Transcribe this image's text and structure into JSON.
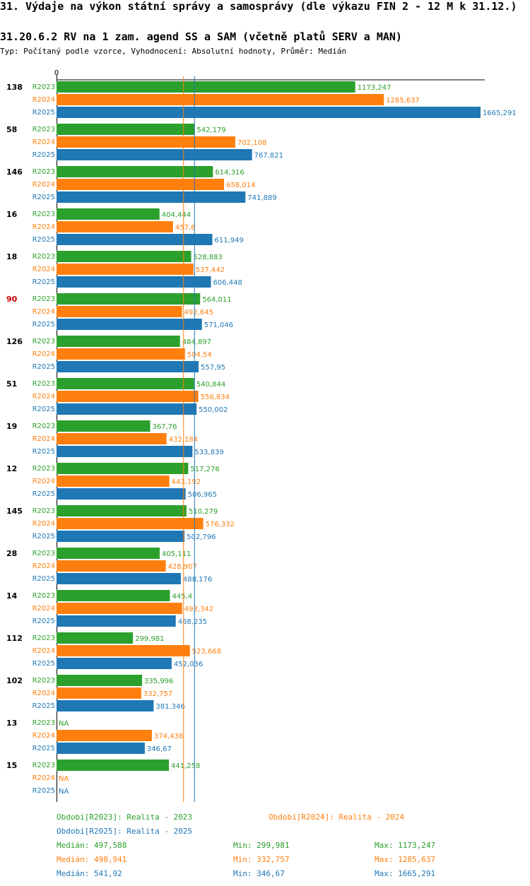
{
  "title": "31. Výdaje na výkon státní správy a samosprávy (dle výkazu FIN 2 - 12 M k 31.12.)",
  "subtitle": "31.20.6.2 RV na 1 zam. agend SS a SAM (včetně platů SERV a MAN)",
  "type_line": "Typ: Počítaný podle vzorce, Vyhodnocení: Absolutní hodnoty, Průměr: Medián",
  "colors": {
    "R2023": "#2ca02c",
    "R2024": "#ff7f0e",
    "R2025": "#1f77b4",
    "highlight": "#cc0000"
  },
  "chart_data": {
    "type": "bar",
    "orientation": "horizontal",
    "axis_zero_label": "0",
    "xlim": [
      0,
      1665.291
    ],
    "series_names": [
      "R2023",
      "R2024",
      "R2025"
    ],
    "highlight_category": "90",
    "reference_lines": [
      {
        "series": "R2024",
        "label": "Medián",
        "value": 498.941
      },
      {
        "series": "R2025",
        "label": "Medián",
        "value": 541.92
      }
    ],
    "groups": [
      {
        "category": "138",
        "values": [
          {
            "series": "R2023",
            "value": 1173.247,
            "label": "1173,247"
          },
          {
            "series": "R2024",
            "value": 1285.637,
            "label": "1285,637"
          },
          {
            "series": "R2025",
            "value": 1665.291,
            "label": "1665,291"
          }
        ]
      },
      {
        "category": "58",
        "values": [
          {
            "series": "R2023",
            "value": 542.179,
            "label": "542,179"
          },
          {
            "series": "R2024",
            "value": 702.108,
            "label": "702,108"
          },
          {
            "series": "R2025",
            "value": 767.821,
            "label": "767,821"
          }
        ]
      },
      {
        "category": "146",
        "values": [
          {
            "series": "R2023",
            "value": 614.316,
            "label": "614,316"
          },
          {
            "series": "R2024",
            "value": 658.014,
            "label": "658,014"
          },
          {
            "series": "R2025",
            "value": 741.889,
            "label": "741,889"
          }
        ]
      },
      {
        "category": "16",
        "values": [
          {
            "series": "R2023",
            "value": 404.444,
            "label": "404,444"
          },
          {
            "series": "R2024",
            "value": 457.6,
            "label": "457,6"
          },
          {
            "series": "R2025",
            "value": 611.949,
            "label": "611,949"
          }
        ]
      },
      {
        "category": "18",
        "values": [
          {
            "series": "R2023",
            "value": 528.883,
            "label": "528,883"
          },
          {
            "series": "R2024",
            "value": 537.442,
            "label": "537,442"
          },
          {
            "series": "R2025",
            "value": 606.448,
            "label": "606,448"
          }
        ]
      },
      {
        "category": "90",
        "values": [
          {
            "series": "R2023",
            "value": 564.011,
            "label": "564,011"
          },
          {
            "series": "R2024",
            "value": 492.645,
            "label": "492,645"
          },
          {
            "series": "R2025",
            "value": 571.046,
            "label": "571,046"
          }
        ]
      },
      {
        "category": "126",
        "values": [
          {
            "series": "R2023",
            "value": 484.897,
            "label": "484,897"
          },
          {
            "series": "R2024",
            "value": 504.54,
            "label": "504,54"
          },
          {
            "series": "R2025",
            "value": 557.95,
            "label": "557,95"
          }
        ]
      },
      {
        "category": "51",
        "values": [
          {
            "series": "R2023",
            "value": 540.844,
            "label": "540,844"
          },
          {
            "series": "R2024",
            "value": 556.834,
            "label": "556,834"
          },
          {
            "series": "R2025",
            "value": 550.002,
            "label": "550,002"
          }
        ]
      },
      {
        "category": "19",
        "values": [
          {
            "series": "R2023",
            "value": 367.76,
            "label": "367,76"
          },
          {
            "series": "R2024",
            "value": 432.184,
            "label": "432,184"
          },
          {
            "series": "R2025",
            "value": 533.839,
            "label": "533,839"
          }
        ]
      },
      {
        "category": "12",
        "values": [
          {
            "series": "R2023",
            "value": 517.276,
            "label": "517,276"
          },
          {
            "series": "R2024",
            "value": 443.192,
            "label": "443,192"
          },
          {
            "series": "R2025",
            "value": 506.965,
            "label": "506,965"
          }
        ]
      },
      {
        "category": "145",
        "values": [
          {
            "series": "R2023",
            "value": 510.279,
            "label": "510,279"
          },
          {
            "series": "R2024",
            "value": 576.332,
            "label": "576,332"
          },
          {
            "series": "R2025",
            "value": 502.796,
            "label": "502,796"
          }
        ]
      },
      {
        "category": "28",
        "values": [
          {
            "series": "R2023",
            "value": 405.111,
            "label": "405,111"
          },
          {
            "series": "R2024",
            "value": 428.907,
            "label": "428,907"
          },
          {
            "series": "R2025",
            "value": 488.176,
            "label": "488,176"
          }
        ]
      },
      {
        "category": "14",
        "values": [
          {
            "series": "R2023",
            "value": 445.4,
            "label": "445,4"
          },
          {
            "series": "R2024",
            "value": 493.342,
            "label": "493,342"
          },
          {
            "series": "R2025",
            "value": 468.235,
            "label": "468,235"
          }
        ]
      },
      {
        "category": "112",
        "values": [
          {
            "series": "R2023",
            "value": 299.981,
            "label": "299,981"
          },
          {
            "series": "R2024",
            "value": 523.668,
            "label": "523,668"
          },
          {
            "series": "R2025",
            "value": 452.036,
            "label": "452,036"
          }
        ]
      },
      {
        "category": "102",
        "values": [
          {
            "series": "R2023",
            "value": 335.996,
            "label": "335,996"
          },
          {
            "series": "R2024",
            "value": 332.757,
            "label": "332,757"
          },
          {
            "series": "R2025",
            "value": 381.346,
            "label": "381,346"
          }
        ]
      },
      {
        "category": "13",
        "values": [
          {
            "series": "R2023",
            "value": null,
            "label": "NA"
          },
          {
            "series": "R2024",
            "value": 374.438,
            "label": "374,438"
          },
          {
            "series": "R2025",
            "value": 346.67,
            "label": "346,67"
          }
        ]
      },
      {
        "category": "15",
        "values": [
          {
            "series": "R2023",
            "value": 441.258,
            "label": "441,258"
          },
          {
            "series": "R2024",
            "value": null,
            "label": "NA"
          },
          {
            "series": "R2025",
            "value": null,
            "label": "NA"
          }
        ]
      }
    ]
  },
  "legend": {
    "period_2023": "Období[R2023]: Realita - 2023",
    "period_2024": "Období[R2024]: Realita - 2024",
    "period_2025": "Období[R2025]: Realita - 2025",
    "stats": [
      {
        "series": "R2023",
        "median": "Medián: 497,588",
        "min": "Min: 299,981",
        "max": "Max: 1173,247"
      },
      {
        "series": "R2024",
        "median": "Medián: 498,941",
        "min": "Min: 332,757",
        "max": "Max: 1285,637"
      },
      {
        "series": "R2025",
        "median": "Medián: 541,92",
        "min": "Min: 346,67",
        "max": "Max: 1665,291"
      }
    ]
  }
}
